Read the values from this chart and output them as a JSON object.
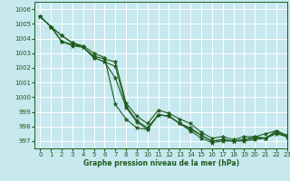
{
  "title": "Graphe pression niveau de la mer (hPa)",
  "xlim": [
    -0.5,
    23
  ],
  "ylim": [
    996.5,
    1006.5
  ],
  "yticks": [
    997,
    998,
    999,
    1000,
    1001,
    1002,
    1003,
    1004,
    1005,
    1006
  ],
  "xticks": [
    0,
    1,
    2,
    3,
    4,
    5,
    6,
    7,
    8,
    9,
    10,
    11,
    12,
    13,
    14,
    15,
    16,
    17,
    18,
    19,
    20,
    21,
    22,
    23
  ],
  "bg_color": "#c6e8ee",
  "grid_color": "#ffffff",
  "line_color": "#1e5c1e",
  "series": [
    [
      1005.5,
      1004.8,
      1004.2,
      1003.7,
      1003.5,
      1003.0,
      1002.7,
      999.5,
      998.5,
      997.9,
      997.8,
      998.8,
      998.7,
      998.2,
      997.7,
      997.2,
      996.9,
      997.0,
      997.0,
      997.0,
      997.1,
      997.2,
      997.5,
      997.3
    ],
    [
      1005.5,
      1004.8,
      1004.2,
      1003.7,
      1003.4,
      1002.7,
      1002.4,
      1001.3,
      999.3,
      998.3,
      997.8,
      998.8,
      998.7,
      998.2,
      997.8,
      997.4,
      997.0,
      997.1,
      997.0,
      997.1,
      997.2,
      997.2,
      997.6,
      997.3
    ],
    [
      1005.5,
      1004.8,
      1003.8,
      1003.6,
      1003.4,
      1002.7,
      1002.4,
      1002.1,
      999.4,
      998.4,
      997.9,
      998.8,
      998.7,
      998.2,
      997.9,
      997.4,
      997.0,
      997.1,
      997.0,
      997.1,
      997.3,
      997.2,
      997.7,
      997.3
    ],
    [
      1005.5,
      1004.8,
      1003.8,
      1003.5,
      1003.4,
      1002.8,
      1002.6,
      1002.4,
      999.6,
      998.7,
      998.2,
      999.1,
      998.9,
      998.5,
      998.2,
      997.6,
      997.2,
      997.3,
      997.1,
      997.3,
      997.3,
      997.5,
      997.7,
      997.4
    ]
  ],
  "marker": "*",
  "markersize": 3.5,
  "linewidth": 0.8,
  "figsize": [
    3.2,
    2.0
  ],
  "dpi": 100,
  "tick_fontsize": 5.0,
  "label_fontsize": 5.5
}
